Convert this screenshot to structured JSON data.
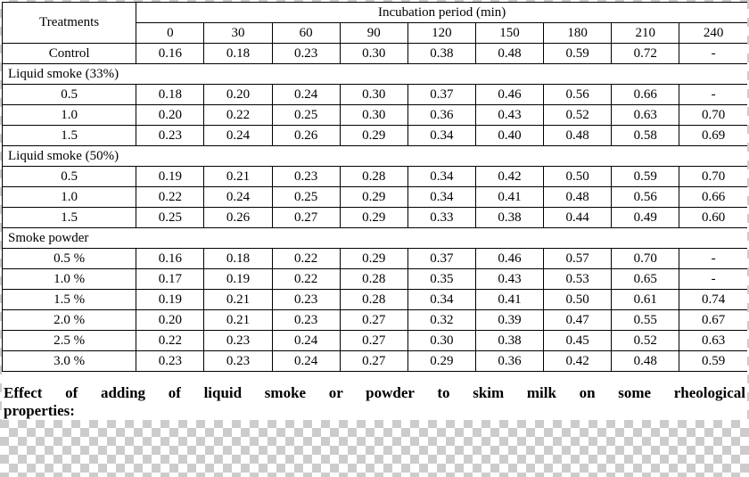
{
  "header": {
    "treatments_label": "Treatments",
    "incubation_label": "Incubation period (min)",
    "periods": [
      "0",
      "30",
      "60",
      "90",
      "120",
      "150",
      "180",
      "210",
      "240"
    ]
  },
  "rows": [
    {
      "type": "data",
      "label": "Control",
      "values": [
        "0.16",
        "0.18",
        "0.23",
        "0.30",
        "0.38",
        "0.48",
        "0.59",
        "0.72",
        "-"
      ]
    },
    {
      "type": "section",
      "label": "Liquid smoke (33%)"
    },
    {
      "type": "data",
      "label": "0.5",
      "values": [
        "0.18",
        "0.20",
        "0.24",
        "0.30",
        "0.37",
        "0.46",
        "0.56",
        "0.66",
        "-"
      ]
    },
    {
      "type": "data",
      "label": "1.0",
      "values": [
        "0.20",
        "0.22",
        "0.25",
        "0.30",
        "0.36",
        "0.43",
        "0.52",
        "0.63",
        "0.70"
      ]
    },
    {
      "type": "data",
      "label": "1.5",
      "values": [
        "0.23",
        "0.24",
        "0.26",
        "0.29",
        "0.34",
        "0.40",
        "0.48",
        "0.58",
        "0.69"
      ]
    },
    {
      "type": "section",
      "label": "Liquid smoke (50%)"
    },
    {
      "type": "data",
      "label": "0.5",
      "values": [
        "0.19",
        "0.21",
        "0.23",
        "0.28",
        "0.34",
        "0.42",
        "0.50",
        "0.59",
        "0.70"
      ]
    },
    {
      "type": "data",
      "label": "1.0",
      "values": [
        "0.22",
        "0.24",
        "0.25",
        "0.29",
        "0.34",
        "0.41",
        "0.48",
        "0.56",
        "0.66"
      ]
    },
    {
      "type": "data",
      "label": "1.5",
      "values": [
        "0.25",
        "0.26",
        "0.27",
        "0.29",
        "0.33",
        "0.38",
        "0.44",
        "0.49",
        "0.60"
      ]
    },
    {
      "type": "section",
      "label": "Smoke powder"
    },
    {
      "type": "data",
      "label": "0.5 %",
      "values": [
        "0.16",
        "0.18",
        "0.22",
        "0.29",
        "0.37",
        "0.46",
        "0.57",
        "0.70",
        "-"
      ]
    },
    {
      "type": "data",
      "label": "1.0 %",
      "values": [
        "0.17",
        "0.19",
        "0.22",
        "0.28",
        "0.35",
        "0.43",
        "0.53",
        "0.65",
        "-"
      ]
    },
    {
      "type": "data",
      "label": "1.5 %",
      "values": [
        "0.19",
        "0.21",
        "0.23",
        "0.28",
        "0.34",
        "0.41",
        "0.50",
        "0.61",
        "0.74"
      ]
    },
    {
      "type": "data",
      "label": "2.0 %",
      "values": [
        "0.20",
        "0.21",
        "0.23",
        "0.27",
        "0.32",
        "0.39",
        "0.47",
        "0.55",
        "0.67"
      ]
    },
    {
      "type": "data",
      "label": "2.5 %",
      "values": [
        "0.22",
        "0.23",
        "0.24",
        "0.27",
        "0.30",
        "0.38",
        "0.45",
        "0.52",
        "0.63"
      ]
    },
    {
      "type": "data",
      "label": "3.0 %",
      "values": [
        "0.23",
        "0.23",
        "0.24",
        "0.27",
        "0.29",
        "0.36",
        "0.42",
        "0.48",
        "0.59"
      ]
    }
  ],
  "caption": {
    "line1": "Effect of adding of liquid smoke or powder to skim milk on some rheological",
    "line2": "properties:"
  }
}
